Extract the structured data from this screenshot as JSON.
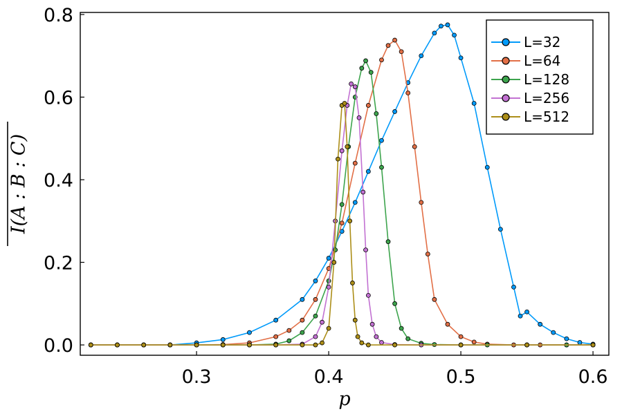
{
  "chart_data": {
    "type": "line",
    "xlabel": "p",
    "ylabel": "I(A : B : C)",
    "xlim": [
      0.212,
      0.612
    ],
    "ylim": [
      -0.025,
      0.805
    ],
    "xticks": [
      0.3,
      0.4,
      0.5,
      0.6
    ],
    "yticks": [
      0.0,
      0.2,
      0.4,
      0.6,
      0.8
    ],
    "grid": false,
    "legend_position": "top-right",
    "series": [
      {
        "name": "L=32",
        "color": "#009AFA",
        "points": [
          [
            0.22,
            0.0
          ],
          [
            0.24,
            0.0
          ],
          [
            0.26,
            0.0
          ],
          [
            0.28,
            0.0
          ],
          [
            0.3,
            0.005
          ],
          [
            0.32,
            0.013
          ],
          [
            0.34,
            0.03
          ],
          [
            0.36,
            0.06
          ],
          [
            0.38,
            0.11
          ],
          [
            0.39,
            0.155
          ],
          [
            0.4,
            0.21
          ],
          [
            0.41,
            0.275
          ],
          [
            0.42,
            0.345
          ],
          [
            0.43,
            0.42
          ],
          [
            0.44,
            0.495
          ],
          [
            0.45,
            0.565
          ],
          [
            0.46,
            0.635
          ],
          [
            0.47,
            0.7
          ],
          [
            0.48,
            0.755
          ],
          [
            0.485,
            0.772
          ],
          [
            0.49,
            0.775
          ],
          [
            0.495,
            0.75
          ],
          [
            0.5,
            0.695
          ],
          [
            0.51,
            0.585
          ],
          [
            0.52,
            0.43
          ],
          [
            0.53,
            0.28
          ],
          [
            0.54,
            0.14
          ],
          [
            0.545,
            0.07
          ],
          [
            0.55,
            0.08
          ],
          [
            0.56,
            0.05
          ],
          [
            0.57,
            0.03
          ],
          [
            0.58,
            0.015
          ],
          [
            0.59,
            0.006
          ],
          [
            0.6,
            0.002
          ]
        ]
      },
      {
        "name": "L=64",
        "color": "#E26F46",
        "points": [
          [
            0.22,
            0.0
          ],
          [
            0.24,
            0.0
          ],
          [
            0.26,
            0.0
          ],
          [
            0.28,
            0.0
          ],
          [
            0.3,
            0.0
          ],
          [
            0.32,
            0.001
          ],
          [
            0.34,
            0.005
          ],
          [
            0.36,
            0.02
          ],
          [
            0.37,
            0.035
          ],
          [
            0.38,
            0.06
          ],
          [
            0.39,
            0.11
          ],
          [
            0.4,
            0.185
          ],
          [
            0.41,
            0.295
          ],
          [
            0.42,
            0.44
          ],
          [
            0.43,
            0.58
          ],
          [
            0.44,
            0.69
          ],
          [
            0.445,
            0.725
          ],
          [
            0.45,
            0.738
          ],
          [
            0.455,
            0.71
          ],
          [
            0.46,
            0.61
          ],
          [
            0.465,
            0.48
          ],
          [
            0.47,
            0.345
          ],
          [
            0.475,
            0.22
          ],
          [
            0.48,
            0.11
          ],
          [
            0.49,
            0.05
          ],
          [
            0.5,
            0.02
          ],
          [
            0.51,
            0.007
          ],
          [
            0.52,
            0.002
          ],
          [
            0.54,
            0.0
          ],
          [
            0.56,
            0.0
          ],
          [
            0.58,
            0.0
          ],
          [
            0.6,
            0.0
          ]
        ]
      },
      {
        "name": "L=128",
        "color": "#3DA44D",
        "points": [
          [
            0.22,
            0.0
          ],
          [
            0.24,
            0.0
          ],
          [
            0.26,
            0.0
          ],
          [
            0.28,
            0.0
          ],
          [
            0.3,
            0.0
          ],
          [
            0.32,
            0.0
          ],
          [
            0.34,
            0.0
          ],
          [
            0.36,
            0.002
          ],
          [
            0.37,
            0.01
          ],
          [
            0.38,
            0.03
          ],
          [
            0.39,
            0.07
          ],
          [
            0.4,
            0.155
          ],
          [
            0.405,
            0.23
          ],
          [
            0.41,
            0.34
          ],
          [
            0.415,
            0.48
          ],
          [
            0.42,
            0.6
          ],
          [
            0.425,
            0.67
          ],
          [
            0.428,
            0.688
          ],
          [
            0.432,
            0.66
          ],
          [
            0.436,
            0.56
          ],
          [
            0.44,
            0.43
          ],
          [
            0.445,
            0.25
          ],
          [
            0.45,
            0.1
          ],
          [
            0.455,
            0.04
          ],
          [
            0.46,
            0.015
          ],
          [
            0.47,
            0.004
          ],
          [
            0.48,
            0.001
          ],
          [
            0.5,
            0.0
          ],
          [
            0.52,
            0.0
          ],
          [
            0.55,
            0.0
          ],
          [
            0.58,
            0.0
          ],
          [
            0.6,
            0.0
          ]
        ]
      },
      {
        "name": "L=256",
        "color": "#C271D2",
        "points": [
          [
            0.22,
            0.0
          ],
          [
            0.24,
            0.0
          ],
          [
            0.26,
            0.0
          ],
          [
            0.28,
            0.0
          ],
          [
            0.3,
            0.0
          ],
          [
            0.32,
            0.0
          ],
          [
            0.34,
            0.0
          ],
          [
            0.36,
            0.0
          ],
          [
            0.38,
            0.002
          ],
          [
            0.39,
            0.02
          ],
          [
            0.395,
            0.055
          ],
          [
            0.4,
            0.14
          ],
          [
            0.405,
            0.3
          ],
          [
            0.41,
            0.47
          ],
          [
            0.414,
            0.58
          ],
          [
            0.417,
            0.632
          ],
          [
            0.42,
            0.625
          ],
          [
            0.423,
            0.55
          ],
          [
            0.426,
            0.37
          ],
          [
            0.428,
            0.23
          ],
          [
            0.43,
            0.12
          ],
          [
            0.433,
            0.05
          ],
          [
            0.436,
            0.02
          ],
          [
            0.44,
            0.006
          ],
          [
            0.45,
            0.001
          ],
          [
            0.47,
            0.0
          ],
          [
            0.5,
            0.0
          ],
          [
            0.55,
            0.0
          ],
          [
            0.6,
            0.0
          ]
        ]
      },
      {
        "name": "L=512",
        "color": "#AC8E18",
        "points": [
          [
            0.22,
            0.0
          ],
          [
            0.24,
            0.0
          ],
          [
            0.26,
            0.0
          ],
          [
            0.28,
            0.0
          ],
          [
            0.3,
            0.0
          ],
          [
            0.32,
            0.0
          ],
          [
            0.34,
            0.0
          ],
          [
            0.36,
            0.0
          ],
          [
            0.38,
            0.0
          ],
          [
            0.39,
            0.0
          ],
          [
            0.395,
            0.005
          ],
          [
            0.4,
            0.04
          ],
          [
            0.404,
            0.2
          ],
          [
            0.407,
            0.45
          ],
          [
            0.41,
            0.58
          ],
          [
            0.412,
            0.585
          ],
          [
            0.414,
            0.48
          ],
          [
            0.416,
            0.3
          ],
          [
            0.418,
            0.15
          ],
          [
            0.42,
            0.06
          ],
          [
            0.422,
            0.02
          ],
          [
            0.425,
            0.005
          ],
          [
            0.43,
            0.0
          ],
          [
            0.45,
            0.0
          ],
          [
            0.5,
            0.0
          ],
          [
            0.55,
            0.0
          ],
          [
            0.6,
            0.0
          ]
        ]
      }
    ]
  }
}
